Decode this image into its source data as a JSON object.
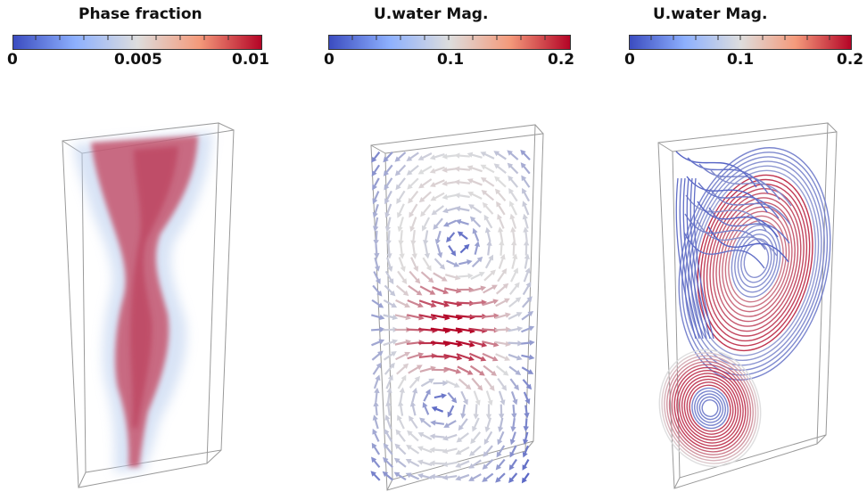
{
  "colormap": {
    "low": "#3b4cc0",
    "mid": "#dddddd",
    "high": "#b40426"
  },
  "panels": [
    {
      "id": "phase-fraction",
      "colorbar": {
        "title": "Phase fraction",
        "min_label": "0",
        "mid_label": "0.005",
        "max_label": "0.01"
      },
      "content": "volume-rendering"
    },
    {
      "id": "velocity-glyphs",
      "colorbar": {
        "title": "U.water Mag.",
        "min_label": "0",
        "mid_label": "0.1",
        "max_label": "0.2"
      },
      "content": "arrow-glyphs"
    },
    {
      "id": "velocity-streamlines",
      "colorbar": {
        "title": "U.water Mag.",
        "min_label": "0",
        "mid_label": "0.1",
        "max_label": "0.2"
      },
      "content": "streamlines"
    }
  ]
}
